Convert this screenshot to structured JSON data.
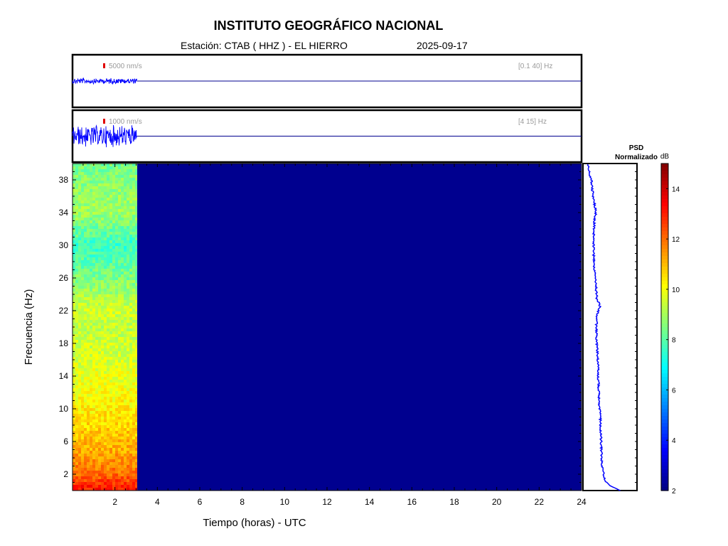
{
  "header": {
    "title": "INSTITUTO GEOGRÁFICO NACIONAL",
    "station": "Estación:  CTAB ( HHZ ) - EL HIERRO",
    "date": "2025-09-17"
  },
  "colors": {
    "trace": "#0000ff",
    "baseline": "#00008f",
    "scale_marker": "#e00000",
    "spectrogram_background": "#00008f",
    "psd_line": "#0000ff"
  },
  "chart_data": [
    {
      "type": "line",
      "name": "trace-broadband",
      "scale_label": "5000 nm/s",
      "band_label": "[0.1 40] Hz",
      "xlim": [
        0,
        24
      ],
      "data_end_hours": 3.05,
      "relative_amplitude": 0.12
    },
    {
      "type": "line",
      "name": "trace-highpass",
      "scale_label": "1000 nm/s",
      "band_label": "[4 15] Hz",
      "xlim": [
        0,
        24
      ],
      "data_end_hours": 3.05,
      "relative_amplitude": 0.45
    },
    {
      "type": "heatmap",
      "name": "spectrogram",
      "xlabel": "Tiempo (horas) - UTC",
      "ylabel": "Frecuencia  (Hz)",
      "xlim": [
        0,
        24
      ],
      "ylim": [
        0,
        40
      ],
      "x_ticks": [
        2,
        4,
        6,
        8,
        10,
        12,
        14,
        16,
        18,
        20,
        22,
        24
      ],
      "y_ticks": [
        2,
        6,
        10,
        14,
        18,
        22,
        26,
        30,
        34,
        38
      ],
      "data_end_hours": 3.05,
      "no_data_level_db": 2,
      "band_levels_db": [
        {
          "f": 0.5,
          "db": 13.0
        },
        {
          "f": 2,
          "db": 12.0
        },
        {
          "f": 4,
          "db": 11.4
        },
        {
          "f": 6,
          "db": 11.0
        },
        {
          "f": 8,
          "db": 10.6
        },
        {
          "f": 10,
          "db": 10.3
        },
        {
          "f": 12,
          "db": 10.0
        },
        {
          "f": 14,
          "db": 9.8
        },
        {
          "f": 16,
          "db": 9.6
        },
        {
          "f": 18,
          "db": 9.5
        },
        {
          "f": 20,
          "db": 9.3
        },
        {
          "f": 22,
          "db": 9.6
        },
        {
          "f": 24,
          "db": 9.0
        },
        {
          "f": 26,
          "db": 8.5
        },
        {
          "f": 28,
          "db": 8.0
        },
        {
          "f": 30,
          "db": 7.6
        },
        {
          "f": 32,
          "db": 8.3
        },
        {
          "f": 34,
          "db": 8.9
        },
        {
          "f": 36,
          "db": 8.8
        },
        {
          "f": 38,
          "db": 8.6
        },
        {
          "f": 40,
          "db": 8.4
        }
      ]
    },
    {
      "type": "line",
      "name": "psd",
      "title": "PSD Normalizado",
      "title_lines": [
        "PSD",
        "Normalizado"
      ],
      "ylim": [
        0,
        40
      ],
      "xlim": [
        0,
        1
      ],
      "points": [
        {
          "f": 0,
          "v": 0.72
        },
        {
          "f": 0.6,
          "v": 0.5
        },
        {
          "f": 1.2,
          "v": 0.4
        },
        {
          "f": 2,
          "v": 0.36
        },
        {
          "f": 3,
          "v": 0.33
        },
        {
          "f": 4,
          "v": 0.32
        },
        {
          "f": 6,
          "v": 0.31
        },
        {
          "f": 8,
          "v": 0.3
        },
        {
          "f": 10,
          "v": 0.28
        },
        {
          "f": 12,
          "v": 0.26
        },
        {
          "f": 14,
          "v": 0.25
        },
        {
          "f": 16,
          "v": 0.24
        },
        {
          "f": 18,
          "v": 0.22
        },
        {
          "f": 20,
          "v": 0.21
        },
        {
          "f": 21.5,
          "v": 0.22
        },
        {
          "f": 22.5,
          "v": 0.29
        },
        {
          "f": 23.5,
          "v": 0.22
        },
        {
          "f": 25,
          "v": 0.2
        },
        {
          "f": 27,
          "v": 0.17
        },
        {
          "f": 29,
          "v": 0.15
        },
        {
          "f": 31,
          "v": 0.15
        },
        {
          "f": 33,
          "v": 0.17
        },
        {
          "f": 34,
          "v": 0.2
        },
        {
          "f": 35,
          "v": 0.17
        },
        {
          "f": 36.5,
          "v": 0.13
        },
        {
          "f": 38,
          "v": 0.1
        },
        {
          "f": 39.2,
          "v": 0.05
        },
        {
          "f": 40,
          "v": 0.02
        }
      ]
    },
    {
      "type": "colorbar",
      "name": "colorbar",
      "label": "dB",
      "range": [
        2,
        15
      ],
      "ticks": [
        2,
        4,
        6,
        8,
        10,
        12,
        14
      ],
      "colormap": "jet"
    }
  ]
}
